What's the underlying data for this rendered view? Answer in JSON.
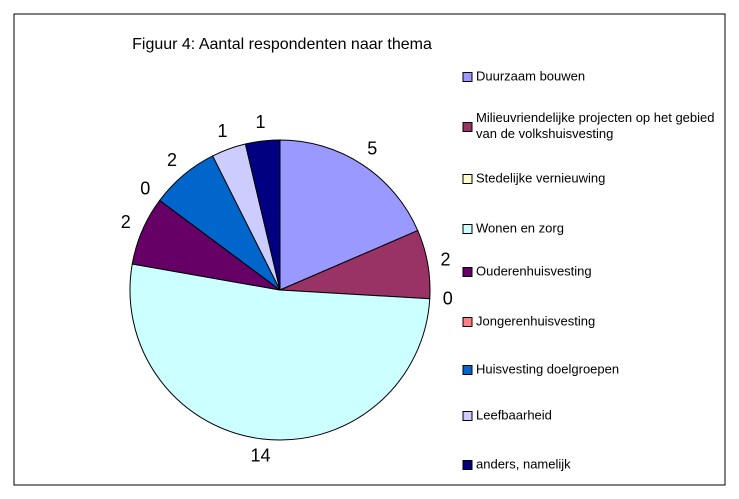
{
  "chart_data": {
    "type": "pie",
    "title": "Figuur 4: Aantal respondenten naar thema",
    "categories": [
      "Duurzaam bouwen",
      "Milieuvriendelijke projecten op het gebied van de volkshuisvesting",
      "Stedelijke vernieuwing",
      "Wonen en zorg",
      "Ouderenhuisvesting",
      "Jongerenhuisvesting",
      "Huisvesting doelgroepen",
      "Leefbaarheid",
      "anders, namelijk"
    ],
    "values": [
      5,
      2,
      0,
      14,
      2,
      0,
      2,
      1,
      1
    ],
    "colors": [
      "#9999ff",
      "#993366",
      "#ffffcc",
      "#ccffff",
      "#660066",
      "#ff8080",
      "#0066cc",
      "#ccccff",
      "#000080"
    ],
    "legend": "right"
  }
}
